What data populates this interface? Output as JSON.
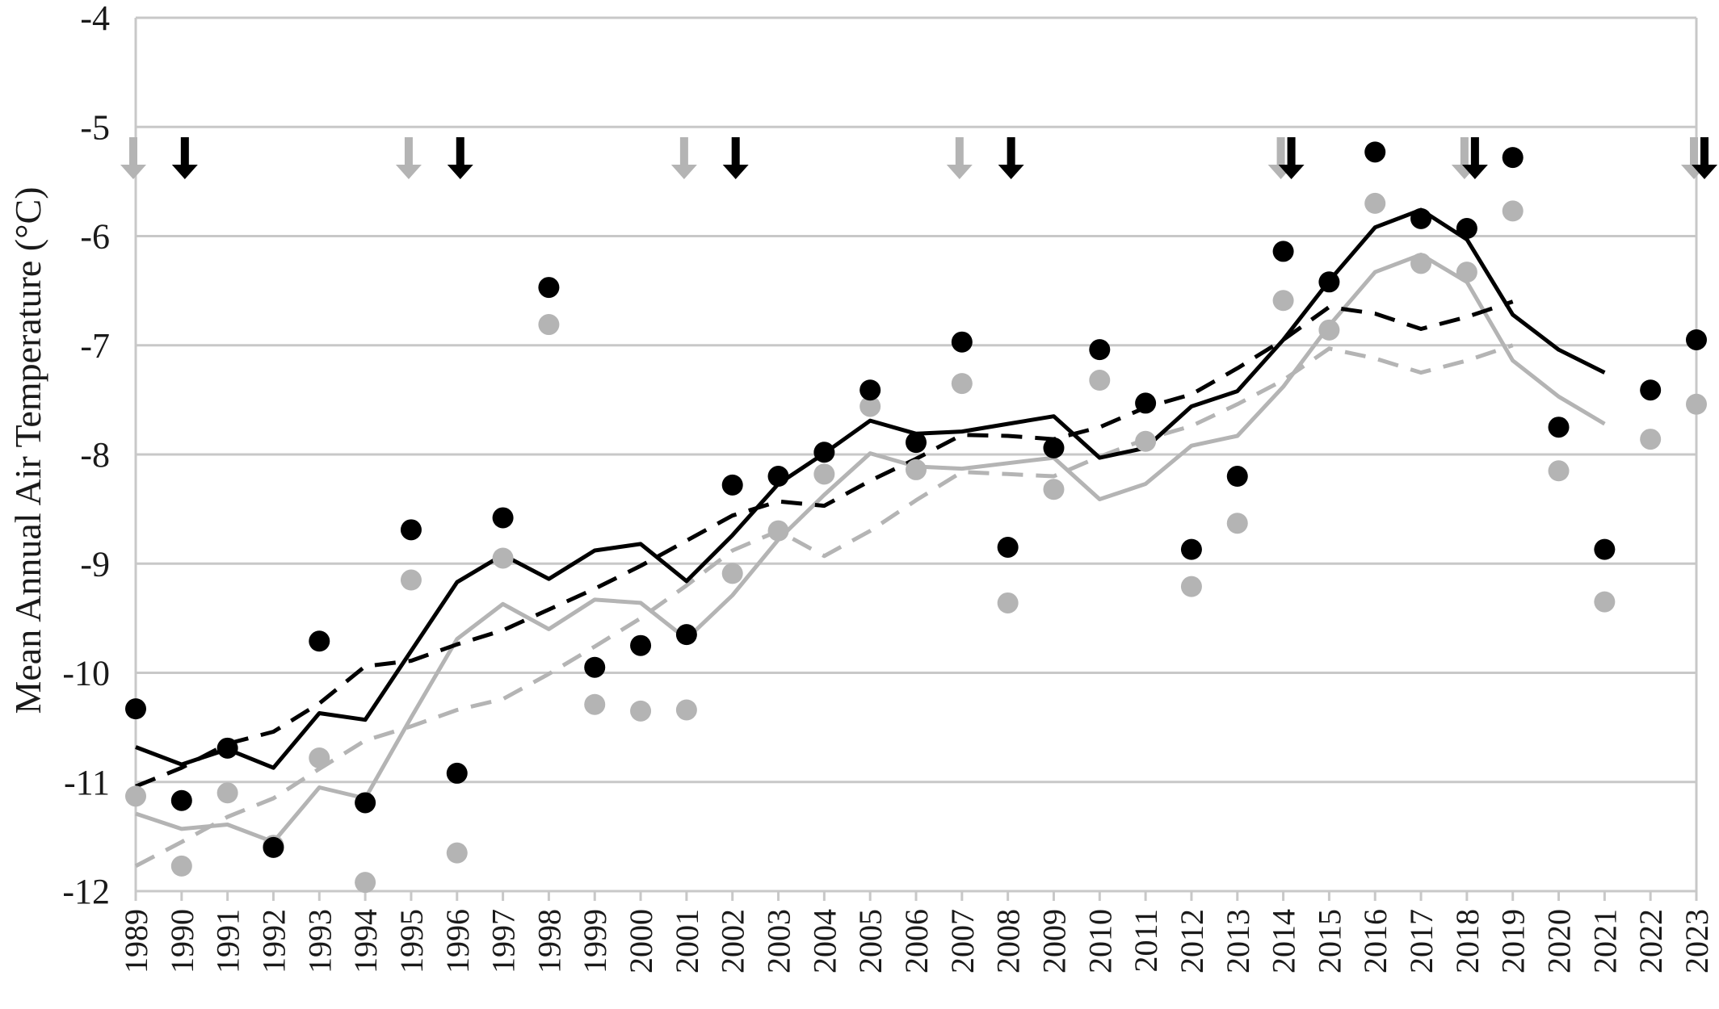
{
  "chart_data": {
    "type": "line",
    "title": "",
    "xlabel": "",
    "ylabel": "Mean Annual Air Temperature (°C)",
    "ylim": [
      -12,
      -4
    ],
    "yticks": [
      "-4",
      "-5",
      "-6",
      "-7",
      "-8",
      "-9",
      "-10",
      "-11",
      "-12"
    ],
    "ytick_values": [
      -4,
      -5,
      -6,
      -7,
      -8,
      -9,
      -10,
      -11,
      -12
    ],
    "x": [
      "1989",
      "1990",
      "1991",
      "1992",
      "1993",
      "1994",
      "1995",
      "1996",
      "1997",
      "1998",
      "1999",
      "2000",
      "2001",
      "2002",
      "2003",
      "2004",
      "2005",
      "2006",
      "2007",
      "2008",
      "2009",
      "2010",
      "2011",
      "2012",
      "2013",
      "2014",
      "2015",
      "2016",
      "2017",
      "2018",
      "2019",
      "2020",
      "2021",
      "2022",
      "2023"
    ],
    "grid": "horizontal",
    "legend": "none",
    "colors": {
      "black": "#000000",
      "gray": "#b4b4b4",
      "grid": "#c8c8c8"
    },
    "series": [
      {
        "style": "points",
        "color": "black",
        "values": [
          -10.33,
          -11.17,
          -10.69,
          -11.6,
          -9.71,
          -11.19,
          -8.69,
          -10.92,
          -8.58,
          -6.47,
          -9.95,
          -9.75,
          -9.65,
          -8.28,
          -8.2,
          -7.98,
          -7.41,
          -7.89,
          -6.97,
          -8.85,
          -7.94,
          -7.04,
          -7.53,
          -8.87,
          -8.2,
          -6.14,
          -6.42,
          -5.23,
          -5.84,
          -5.93,
          -5.28,
          -7.75,
          -8.87,
          -7.41,
          -6.95
        ]
      },
      {
        "style": "points",
        "color": "gray",
        "values": [
          -11.13,
          -11.77,
          -11.1,
          -11.58,
          -10.78,
          -11.92,
          -9.15,
          -11.65,
          -8.95,
          -6.81,
          -10.29,
          -10.35,
          -10.34,
          -9.09,
          -8.7,
          -8.18,
          -7.56,
          -8.14,
          -7.35,
          -9.36,
          -8.32,
          -7.32,
          -7.88,
          -9.21,
          -8.63,
          -6.59,
          -6.86,
          -5.7,
          -6.25,
          -6.33,
          -5.77,
          -8.15,
          -9.35,
          -7.86,
          -7.54
        ]
      },
      {
        "style": "solid-line",
        "color": "black",
        "values": [
          -10.68,
          -10.84,
          -10.7,
          -10.87,
          -10.37,
          -10.43,
          -9.8,
          -9.17,
          -8.92,
          -9.14,
          -8.88,
          -8.82,
          -9.16,
          -8.74,
          -8.27,
          -7.99,
          -7.69,
          -7.81,
          -7.79,
          -7.72,
          -7.65,
          -8.03,
          -7.94,
          -7.56,
          -7.42,
          -6.95,
          -6.41,
          -5.92,
          -5.76,
          -6.03,
          -6.72,
          -7.04,
          -7.25,
          null,
          null
        ]
      },
      {
        "style": "solid-line",
        "color": "gray",
        "values": [
          -11.29,
          -11.43,
          -11.39,
          -11.55,
          -11.05,
          -11.15,
          -10.41,
          -9.69,
          -9.37,
          -9.6,
          -9.33,
          -9.36,
          -9.69,
          -9.29,
          -8.78,
          -8.37,
          -7.99,
          -8.11,
          -8.13,
          -8.08,
          -8.03,
          -8.41,
          -8.27,
          -7.92,
          -7.83,
          -7.38,
          -6.82,
          -6.33,
          -6.17,
          -6.42,
          -7.14,
          -7.47,
          -7.72,
          null,
          null
        ]
      },
      {
        "style": "dashed-line",
        "color": "black",
        "values": [
          -11.04,
          -10.87,
          -10.65,
          -10.54,
          -10.28,
          -9.94,
          -9.89,
          -9.74,
          -9.61,
          -9.42,
          -9.23,
          -9.02,
          -8.79,
          -8.56,
          -8.43,
          -8.47,
          -8.24,
          -8.04,
          -7.82,
          -7.83,
          -7.86,
          -7.75,
          -7.57,
          -7.45,
          -7.21,
          -6.95,
          -6.65,
          -6.71,
          -6.85,
          -6.74,
          -6.6,
          null,
          null,
          null,
          null
        ]
      },
      {
        "style": "dashed-line",
        "color": "gray",
        "values": [
          -11.77,
          -11.55,
          -11.32,
          -11.15,
          -10.88,
          -10.62,
          -10.49,
          -10.34,
          -10.24,
          -10.01,
          -9.76,
          -9.5,
          -9.2,
          -8.88,
          -8.7,
          -8.93,
          -8.7,
          -8.42,
          -8.16,
          -8.18,
          -8.2,
          -8.02,
          -7.86,
          -7.74,
          -7.54,
          -7.32,
          -7.03,
          -7.12,
          -7.25,
          -7.14,
          -7.0,
          null,
          null,
          null,
          null
        ]
      }
    ],
    "arrow_markers": {
      "gray_years": [
        "1989",
        "1995",
        "2001",
        "2007",
        "2014",
        "2018",
        "2023"
      ],
      "black_years": [
        "1990",
        "1996",
        "2002",
        "2008",
        "2014",
        "2018",
        "2023"
      ]
    }
  }
}
